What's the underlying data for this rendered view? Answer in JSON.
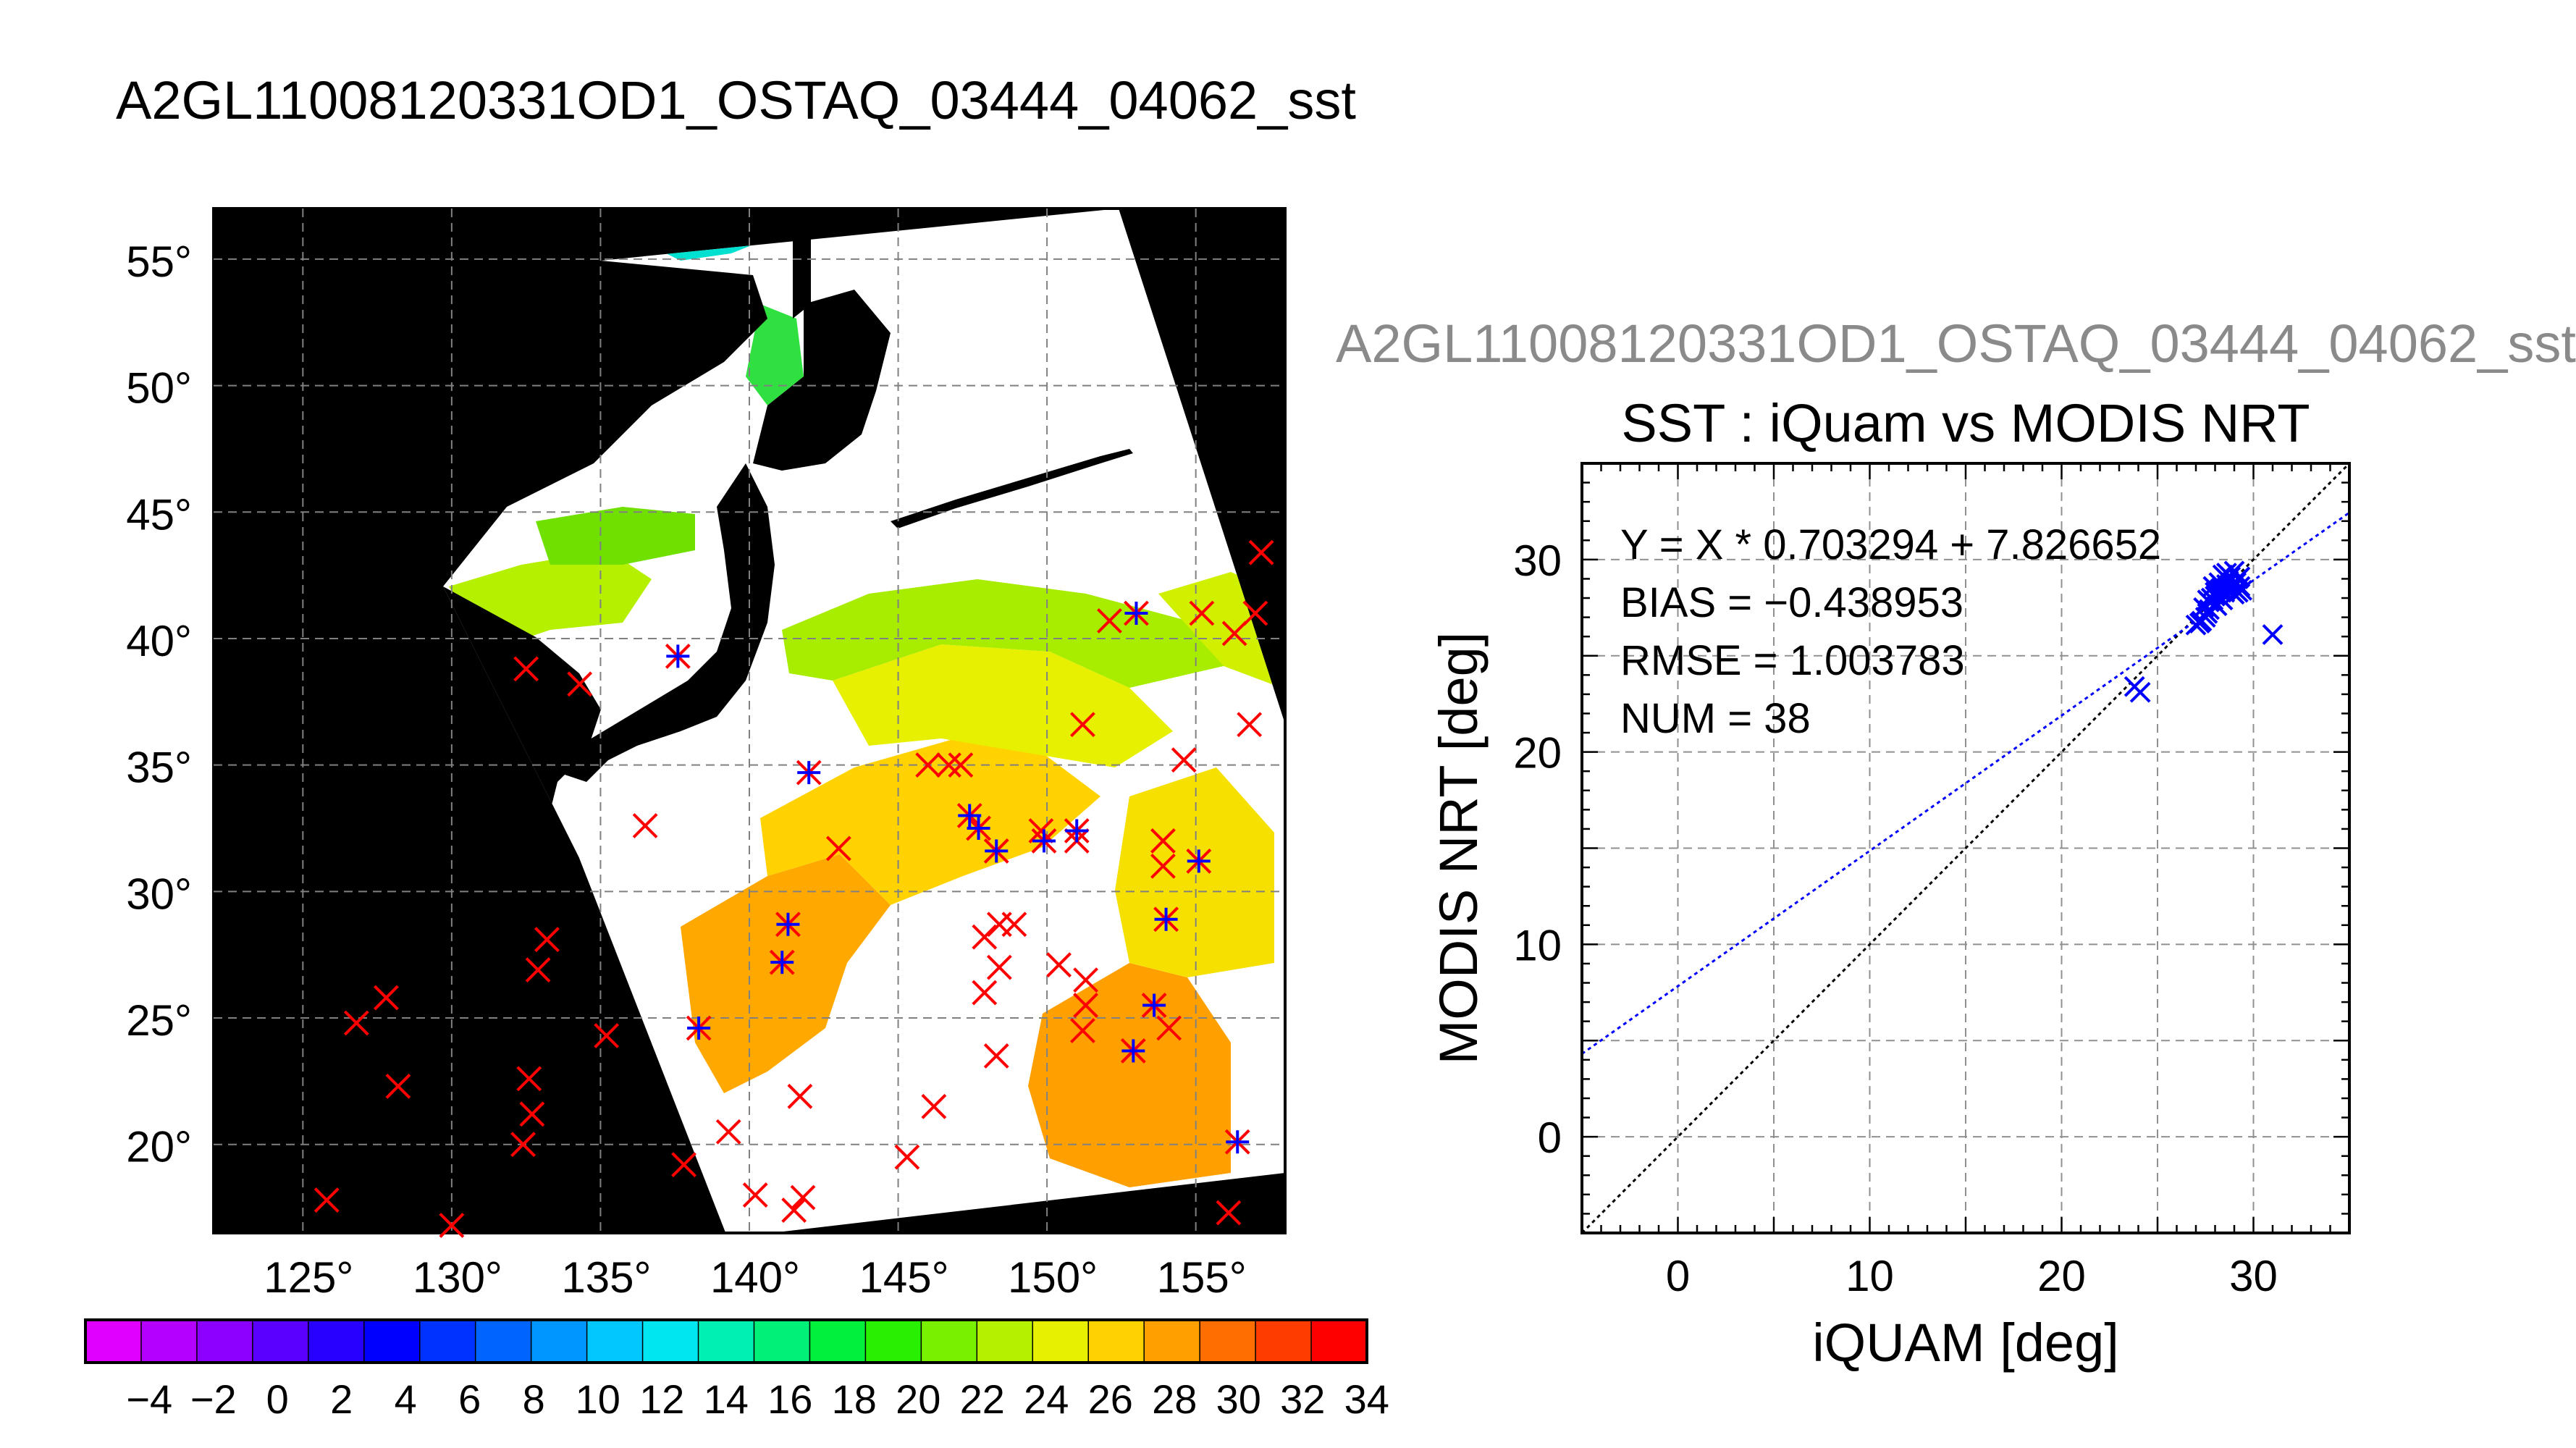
{
  "map_panel": {
    "title": "A2GL11008120331OD1_OSTAQ_03444_04062_sst",
    "lat_ticks": [
      55,
      50,
      45,
      40,
      35,
      30,
      25,
      20
    ],
    "lon_ticks": [
      125,
      130,
      135,
      140,
      145,
      150,
      155
    ],
    "degree_symbol": "°",
    "colorbar": {
      "labels": [
        "-4",
        "-2",
        "0",
        "2",
        "4",
        "6",
        "8",
        "10",
        "12",
        "14",
        "16",
        "18",
        "20",
        "22",
        "24",
        "26",
        "28",
        "30",
        "32",
        "34"
      ],
      "colors": [
        "#e000ff",
        "#b400ff",
        "#8c00ff",
        "#5a00ff",
        "#2800ff",
        "#0000ff",
        "#0032ff",
        "#0064ff",
        "#0096ff",
        "#00c8ff",
        "#00e6f0",
        "#00f0b4",
        "#00f078",
        "#00f03c",
        "#28f000",
        "#78f000",
        "#b4f000",
        "#e6f000",
        "#ffd200",
        "#ffa000",
        "#ff6e00",
        "#ff3c00",
        "#ff0000"
      ]
    },
    "land_color": "#000000",
    "cloud_color": "#ffffff",
    "matchup_markers": {
      "all_color": "#ff0000",
      "used_color": "#0000ff",
      "all": [
        [
          125.8,
          17.8
        ],
        [
          126.8,
          24.8
        ],
        [
          127.8,
          25.8
        ],
        [
          128.2,
          22.3
        ],
        [
          130,
          16.8
        ],
        [
          132.4,
          20
        ],
        [
          132.6,
          22.6
        ],
        [
          132.7,
          21.2
        ],
        [
          132.9,
          26.9
        ],
        [
          133.2,
          28.1
        ],
        [
          132.5,
          38.8
        ],
        [
          134.3,
          38.2
        ],
        [
          135.2,
          24.3
        ],
        [
          136.5,
          32.6
        ],
        [
          137.6,
          39.3
        ],
        [
          137.8,
          19.2
        ],
        [
          138.3,
          24.6
        ],
        [
          139.3,
          20.5
        ],
        [
          140.2,
          18
        ],
        [
          141.1,
          27.2
        ],
        [
          141.3,
          28.7
        ],
        [
          141.5,
          17.4
        ],
        [
          141.7,
          21.9
        ],
        [
          141.8,
          17.9
        ],
        [
          142,
          34.7
        ],
        [
          143,
          31.7
        ],
        [
          145.3,
          19.5
        ],
        [
          146,
          35
        ],
        [
          146.2,
          21.5
        ],
        [
          146.7,
          35
        ],
        [
          147.1,
          35
        ],
        [
          147.4,
          33
        ],
        [
          147.7,
          32.5
        ],
        [
          147.9,
          28.2
        ],
        [
          148.3,
          31.6
        ],
        [
          148.4,
          28.7
        ],
        [
          147.9,
          26
        ],
        [
          148.4,
          27
        ],
        [
          148.3,
          23.5
        ],
        [
          148.9,
          28.7
        ],
        [
          149.8,
          32.4
        ],
        [
          149.9,
          32
        ],
        [
          150.4,
          27.1
        ],
        [
          151,
          32.4
        ],
        [
          151,
          32
        ],
        [
          151.3,
          26.5
        ],
        [
          151.3,
          25.5
        ],
        [
          151.2,
          24.5
        ],
        [
          151.2,
          36.6
        ],
        [
          152.1,
          40.7
        ],
        [
          152.9,
          23.7
        ],
        [
          153,
          41
        ],
        [
          153.6,
          25.5
        ],
        [
          153.9,
          32
        ],
        [
          153.9,
          31
        ],
        [
          154,
          28.9
        ],
        [
          154.1,
          24.6
        ],
        [
          154.6,
          35.2
        ],
        [
          155.1,
          31.2
        ],
        [
          155.2,
          41
        ],
        [
          156.1,
          17.3
        ],
        [
          156.3,
          40.2
        ],
        [
          156.4,
          20.1
        ],
        [
          156.8,
          36.6
        ],
        [
          157,
          41
        ],
        [
          157.2,
          43.4
        ]
      ],
      "used": [
        [
          137.6,
          39.3
        ],
        [
          138.3,
          24.6
        ],
        [
          141.1,
          27.2
        ],
        [
          141.3,
          28.7
        ],
        [
          142,
          34.7
        ],
        [
          147.4,
          33
        ],
        [
          147.7,
          32.5
        ],
        [
          148.3,
          31.6
        ],
        [
          149.9,
          32
        ],
        [
          151,
          32.4
        ],
        [
          152.9,
          23.7
        ],
        [
          153,
          41
        ],
        [
          153.6,
          25.5
        ],
        [
          154,
          28.9
        ],
        [
          155.1,
          31.2
        ],
        [
          156.4,
          20.1
        ]
      ]
    }
  },
  "scatter_panel": {
    "filename": "A2GL11008120331OD1_OSTAQ_03444_04062_sst",
    "title": "SST : iQuam vs MODIS NRT",
    "xlabel": "iQUAM [deg]",
    "ylabel": "MODIS NRT [deg]",
    "stats": [
      "Y = X * 0.703294 + 7.826652",
      "BIAS = −0.438953",
      "RMSE = 1.003783",
      "NUM = 38"
    ]
  },
  "chart_data": {
    "type": "scatter",
    "xlim": [
      -5,
      35
    ],
    "ylim": [
      -5,
      35
    ],
    "xticks": [
      0,
      10,
      20,
      30
    ],
    "yticks": [
      0,
      10,
      20,
      30
    ],
    "grid": true,
    "marker_color": "#0000ff",
    "fit_line": {
      "slope": 0.703294,
      "intercept": 7.826652,
      "color": "#0000ff",
      "style": "dotted"
    },
    "identity_line": {
      "slope": 1,
      "intercept": 0,
      "color": "#000000",
      "style": "dotted"
    },
    "points": [
      [
        23.8,
        23.4
      ],
      [
        24.1,
        23.1
      ],
      [
        27,
        26.6
      ],
      [
        27.2,
        26.7
      ],
      [
        27.3,
        26.8
      ],
      [
        27.5,
        27
      ],
      [
        27.6,
        27.2
      ],
      [
        27.4,
        27.5
      ],
      [
        27.7,
        27.8
      ],
      [
        27.8,
        28
      ],
      [
        27.9,
        27.9
      ],
      [
        28,
        28.1
      ],
      [
        28.1,
        27.6
      ],
      [
        28.2,
        28.4
      ],
      [
        28.3,
        28.5
      ],
      [
        28.5,
        28.3
      ],
      [
        28.6,
        28.7
      ],
      [
        28.7,
        28.9
      ],
      [
        28.8,
        29.1
      ],
      [
        28.9,
        28.6
      ],
      [
        29,
        28.2
      ],
      [
        29.1,
        28.8
      ],
      [
        29.2,
        29
      ],
      [
        29.3,
        28.6
      ],
      [
        29.4,
        28.4
      ],
      [
        28.4,
        29.2
      ],
      [
        28.2,
        28.8
      ],
      [
        28,
        28.3
      ],
      [
        27.7,
        27.4
      ],
      [
        27.9,
        28.6
      ],
      [
        28.6,
        29.3
      ],
      [
        29,
        29.4
      ],
      [
        29.2,
        28.3
      ],
      [
        28.4,
        27.9
      ],
      [
        28.8,
        28.4
      ],
      [
        27.6,
        27.9
      ],
      [
        29.3,
        29.1
      ],
      [
        31,
        26.1
      ]
    ]
  }
}
